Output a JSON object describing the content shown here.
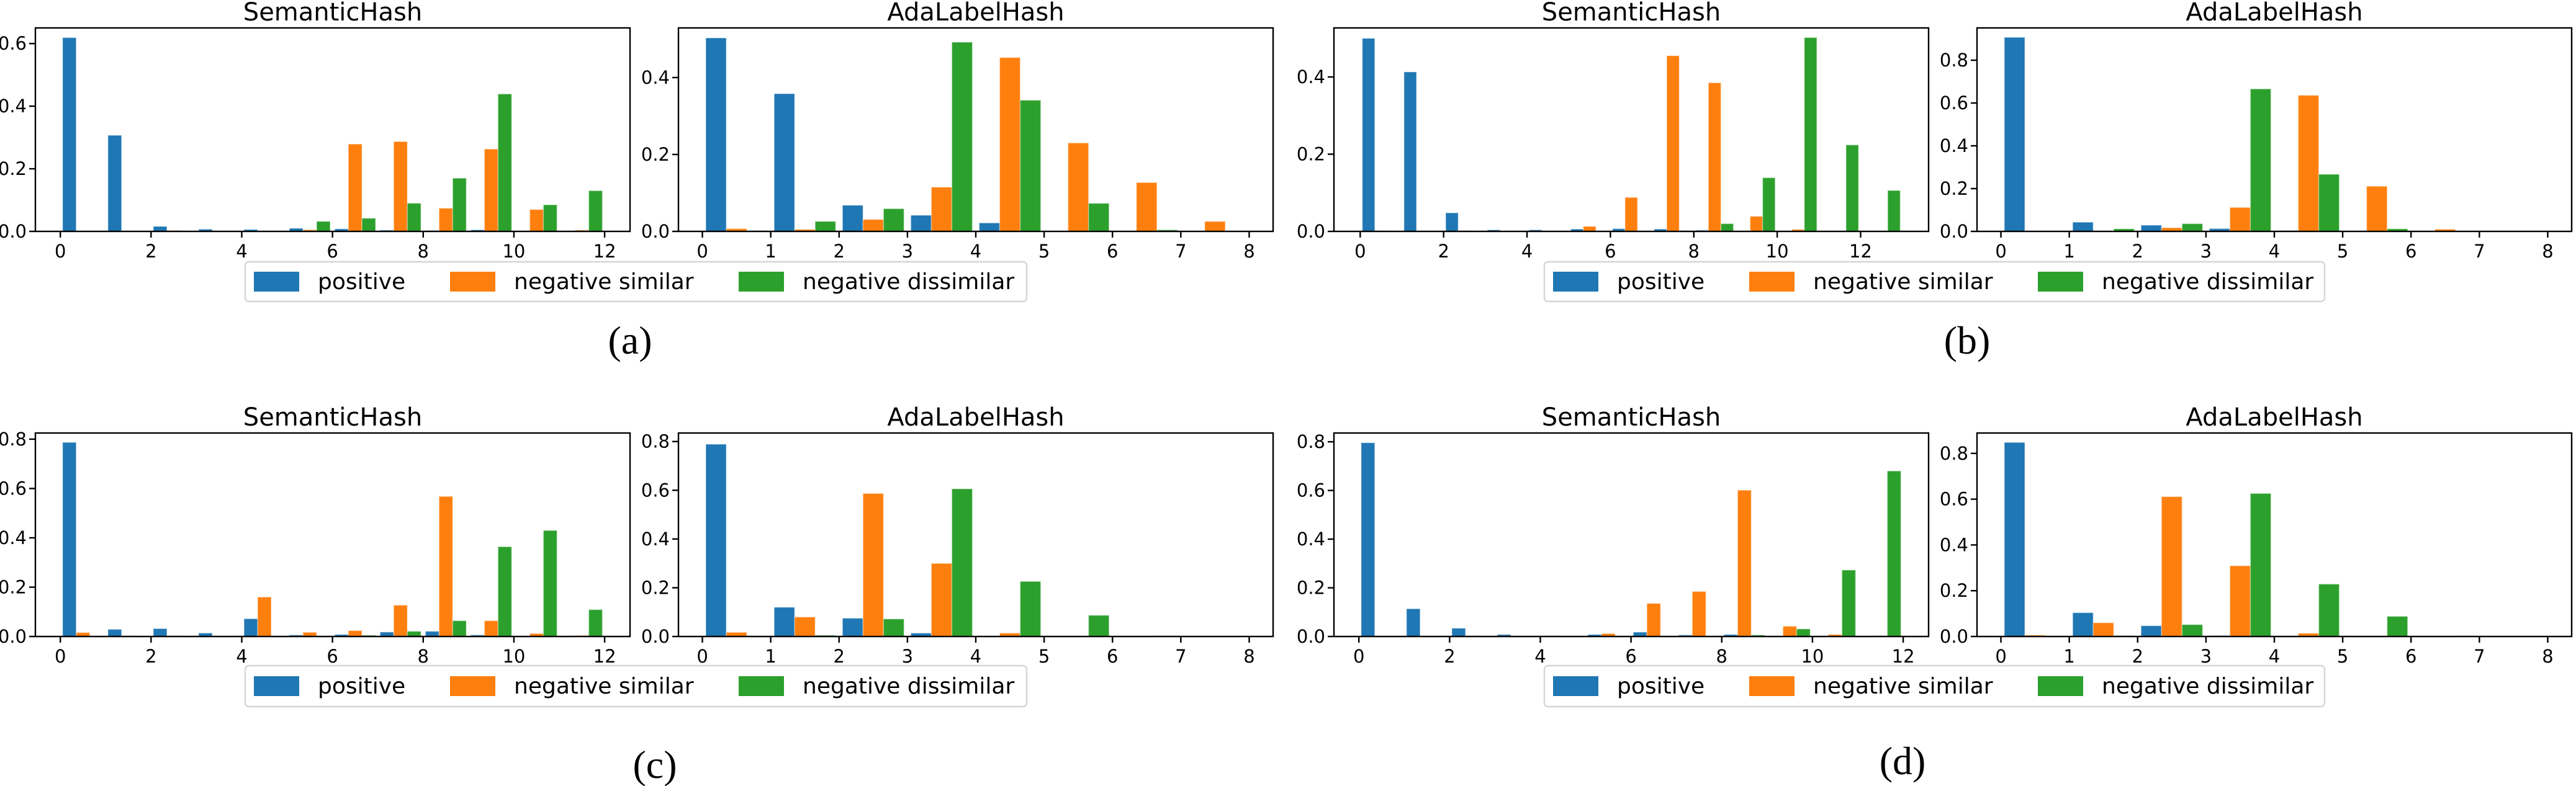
{
  "colors": {
    "positive": "#1f77b4",
    "negative_similar": "#ff7f0e",
    "negative_dissimilar": "#2ca02c"
  },
  "legend": {
    "items": [
      {
        "key": "positive",
        "label": "positive"
      },
      {
        "key": "negative_similar",
        "label": "negative similar"
      },
      {
        "key": "negative_dissimilar",
        "label": "negative dissimilar"
      }
    ]
  },
  "captions": {
    "a": "(a)",
    "b": "(b)",
    "c": "(c)",
    "d": "(d)"
  },
  "chart_data": [
    {
      "id": "a-semantichash",
      "group": "a",
      "type": "bar",
      "title": "SemanticHash",
      "xlabel": "",
      "ylabel": "",
      "xlim": [
        -0.55,
        12.56
      ],
      "ylim": [
        0,
        0.65
      ],
      "xticks": [
        0,
        2,
        4,
        6,
        8,
        10,
        12
      ],
      "yticks": [
        0.0,
        0.2,
        0.4,
        0.6
      ],
      "ytick_labels": [
        "0.0",
        "0.2",
        "0.4",
        "0.6"
      ],
      "bins": [
        0,
        1,
        2,
        3,
        4,
        5,
        6,
        7,
        8,
        9,
        10,
        11
      ],
      "series": [
        {
          "name": "positive",
          "values": [
            0.619,
            0.307,
            0.016,
            0.007,
            0.006,
            0.01,
            0.008,
            0.004,
            0.003,
            0.005,
            0.0,
            0.001
          ]
        },
        {
          "name": "negative similar",
          "values": [
            0.001,
            0.002,
            0.003,
            0.001,
            0.001,
            0.005,
            0.279,
            0.287,
            0.074,
            0.263,
            0.07,
            0.004
          ]
        },
        {
          "name": "negative dissimilar",
          "values": [
            0.0,
            0.0,
            0.0,
            0.0,
            0.0,
            0.032,
            0.042,
            0.09,
            0.17,
            0.439,
            0.085,
            0.13
          ]
        }
      ],
      "legend": "below"
    },
    {
      "id": "a-adalabelhash",
      "group": "a",
      "type": "bar",
      "title": "AdaLabelHash",
      "xlabel": "",
      "ylabel": "",
      "xlim": [
        -0.35,
        8.35
      ],
      "ylim": [
        0,
        0.529
      ],
      "xticks": [
        0,
        1,
        2,
        3,
        4,
        5,
        6,
        7,
        8
      ],
      "yticks": [
        0.0,
        0.2,
        0.4
      ],
      "ytick_labels": [
        "0.0",
        "0.2",
        "0.4"
      ],
      "bins": [
        0,
        1,
        2,
        3,
        4,
        5,
        6,
        7
      ],
      "series": [
        {
          "name": "positive",
          "values": [
            0.503,
            0.358,
            0.068,
            0.042,
            0.022,
            0.0,
            0.0,
            0.0
          ]
        },
        {
          "name": "negative similar",
          "values": [
            0.007,
            0.005,
            0.031,
            0.115,
            0.452,
            0.23,
            0.127,
            0.026
          ]
        },
        {
          "name": "negative dissimilar",
          "values": [
            0.002,
            0.026,
            0.059,
            0.492,
            0.341,
            0.073,
            0.004,
            0.0
          ]
        }
      ],
      "legend": "below"
    },
    {
      "id": "b-semantichash",
      "group": "b",
      "type": "bar",
      "title": "SemanticHash",
      "xlabel": "",
      "ylabel": "",
      "xlim": [
        -0.63,
        13.63
      ],
      "ylim": [
        0,
        0.527
      ],
      "xticks": [
        0,
        2,
        4,
        6,
        8,
        10,
        12
      ],
      "yticks": [
        0.0,
        0.2,
        0.4
      ],
      "ytick_labels": [
        "0.0",
        "0.2",
        "0.4"
      ],
      "bins": [
        0,
        1,
        2,
        3,
        4,
        5,
        6,
        7,
        8,
        9,
        10,
        11,
        12
      ],
      "series": [
        {
          "name": "positive",
          "values": [
            0.5,
            0.413,
            0.048,
            0.004,
            0.004,
            0.006,
            0.007,
            0.006,
            0.003,
            0.001,
            0.001,
            0.0,
            0.0
          ]
        },
        {
          "name": "negative similar",
          "values": [
            0.002,
            0.001,
            0.002,
            0.001,
            0.001,
            0.013,
            0.088,
            0.455,
            0.385,
            0.039,
            0.005,
            0.001,
            0.0
          ]
        },
        {
          "name": "negative dissimilar",
          "values": [
            0.0,
            0.0,
            0.0,
            0.0,
            0.0,
            0.0,
            0.001,
            0.002,
            0.02,
            0.139,
            0.502,
            0.224,
            0.106
          ]
        }
      ],
      "legend": "below"
    },
    {
      "id": "b-adalabelhash",
      "group": "b",
      "type": "bar",
      "title": "AdaLabelHash",
      "xlabel": "",
      "ylabel": "",
      "xlim": [
        -0.35,
        8.35
      ],
      "ylim": [
        0,
        0.951
      ],
      "xticks": [
        0,
        1,
        2,
        3,
        4,
        5,
        6,
        7,
        8
      ],
      "yticks": [
        0.0,
        0.2,
        0.4,
        0.6,
        0.8
      ],
      "ytick_labels": [
        "0.0",
        "0.2",
        "0.4",
        "0.6",
        "0.8"
      ],
      "bins": [
        0,
        1,
        2,
        3,
        4,
        5,
        6,
        7
      ],
      "series": [
        {
          "name": "positive",
          "values": [
            0.907,
            0.043,
            0.029,
            0.013,
            0.004,
            0.0,
            0.0,
            0.0
          ]
        },
        {
          "name": "negative similar",
          "values": [
            0.001,
            0.003,
            0.017,
            0.112,
            0.636,
            0.211,
            0.01,
            0.001
          ]
        },
        {
          "name": "negative dissimilar",
          "values": [
            0.0,
            0.012,
            0.036,
            0.666,
            0.267,
            0.012,
            0.001,
            0.0
          ]
        }
      ],
      "legend": "below"
    },
    {
      "id": "c-semantichash",
      "group": "c",
      "type": "bar",
      "title": "SemanticHash",
      "xlabel": "",
      "ylabel": "",
      "xlim": [
        -0.55,
        12.56
      ],
      "ylim": [
        0,
        0.825
      ],
      "xticks": [
        0,
        2,
        4,
        6,
        8,
        10,
        12
      ],
      "yticks": [
        0.0,
        0.2,
        0.4,
        0.6,
        0.8
      ],
      "ytick_labels": [
        "0.0",
        "0.2",
        "0.4",
        "0.6",
        "0.8"
      ],
      "bins": [
        0,
        1,
        2,
        3,
        4,
        5,
        6,
        7,
        8,
        9,
        10,
        11
      ],
      "series": [
        {
          "name": "positive",
          "values": [
            0.787,
            0.029,
            0.032,
            0.014,
            0.072,
            0.006,
            0.008,
            0.018,
            0.021,
            0.006,
            0.0,
            0.0
          ]
        },
        {
          "name": "negative similar",
          "values": [
            0.016,
            0.003,
            0.003,
            0.0,
            0.16,
            0.017,
            0.024,
            0.127,
            0.568,
            0.064,
            0.012,
            0.004
          ]
        },
        {
          "name": "negative dissimilar",
          "values": [
            0.0,
            0.0,
            0.0,
            0.0,
            0.0,
            0.002,
            0.005,
            0.021,
            0.064,
            0.364,
            0.43,
            0.109
          ]
        }
      ],
      "legend": "below"
    },
    {
      "id": "c-adalabelhash",
      "group": "c",
      "type": "bar",
      "title": "AdaLabelHash",
      "xlabel": "",
      "ylabel": "",
      "xlim": [
        -0.35,
        8.35
      ],
      "ylim": [
        0,
        0.835
      ],
      "xticks": [
        0,
        1,
        2,
        3,
        4,
        5,
        6,
        7,
        8
      ],
      "yticks": [
        0.0,
        0.2,
        0.4,
        0.6,
        0.8
      ],
      "ytick_labels": [
        "0.0",
        "0.2",
        "0.4",
        "0.6",
        "0.8"
      ],
      "bins": [
        0,
        1,
        2,
        3,
        4,
        5,
        6,
        7
      ],
      "series": [
        {
          "name": "positive",
          "values": [
            0.789,
            0.12,
            0.075,
            0.014,
            0.0,
            0.0,
            0.0,
            0.0
          ]
        },
        {
          "name": "negative similar",
          "values": [
            0.017,
            0.08,
            0.587,
            0.3,
            0.014,
            0.0,
            0.0,
            0.0
          ]
        },
        {
          "name": "negative dissimilar",
          "values": [
            0.0,
            0.005,
            0.072,
            0.606,
            0.226,
            0.087,
            0.003,
            0.0
          ]
        }
      ],
      "legend": "below"
    },
    {
      "id": "d-semantichash",
      "group": "d",
      "type": "bar",
      "title": "SemanticHash",
      "xlabel": "",
      "ylabel": "",
      "xlim": [
        -0.55,
        12.56
      ],
      "ylim": [
        0,
        0.836
      ],
      "xticks": [
        0,
        2,
        4,
        6,
        8,
        10,
        12
      ],
      "yticks": [
        0.0,
        0.2,
        0.4,
        0.6,
        0.8
      ],
      "ytick_labels": [
        "0.0",
        "0.2",
        "0.4",
        "0.6",
        "0.8"
      ],
      "bins": [
        0,
        1,
        2,
        3,
        4,
        5,
        6,
        7,
        8,
        9,
        10,
        11
      ],
      "series": [
        {
          "name": "positive",
          "values": [
            0.796,
            0.114,
            0.034,
            0.008,
            0.003,
            0.008,
            0.018,
            0.006,
            0.008,
            0.0,
            0.0,
            0.0
          ]
        },
        {
          "name": "negative similar",
          "values": [
            0.0,
            0.0,
            0.003,
            0.0,
            0.002,
            0.012,
            0.136,
            0.185,
            0.601,
            0.042,
            0.008,
            0.003
          ]
        },
        {
          "name": "negative dissimilar",
          "values": [
            0.0,
            0.0,
            0.0,
            0.0,
            0.0,
            0.0,
            0.0,
            0.002,
            0.006,
            0.031,
            0.273,
            0.68
          ]
        }
      ],
      "legend": "below"
    },
    {
      "id": "d-adalabelhash",
      "group": "d",
      "type": "bar",
      "title": "AdaLabelHash",
      "xlabel": "",
      "ylabel": "",
      "xlim": [
        -0.35,
        8.35
      ],
      "ylim": [
        0,
        0.889
      ],
      "xticks": [
        0,
        1,
        2,
        3,
        4,
        5,
        6,
        7,
        8
      ],
      "yticks": [
        0.0,
        0.2,
        0.4,
        0.6,
        0.8
      ],
      "ytick_labels": [
        "0.0",
        "0.2",
        "0.4",
        "0.6",
        "0.8"
      ],
      "bins": [
        0,
        1,
        2,
        3,
        4,
        5,
        6,
        7
      ],
      "series": [
        {
          "name": "positive",
          "values": [
            0.848,
            0.104,
            0.047,
            0.004,
            0.0,
            0.0,
            0.0,
            0.0
          ]
        },
        {
          "name": "negative similar",
          "values": [
            0.006,
            0.06,
            0.611,
            0.309,
            0.014,
            0.0,
            0.0,
            0.0
          ]
        },
        {
          "name": "negative dissimilar",
          "values": [
            0.0,
            0.004,
            0.052,
            0.625,
            0.229,
            0.088,
            0.003,
            0.0
          ]
        }
      ],
      "legend": "below"
    }
  ]
}
